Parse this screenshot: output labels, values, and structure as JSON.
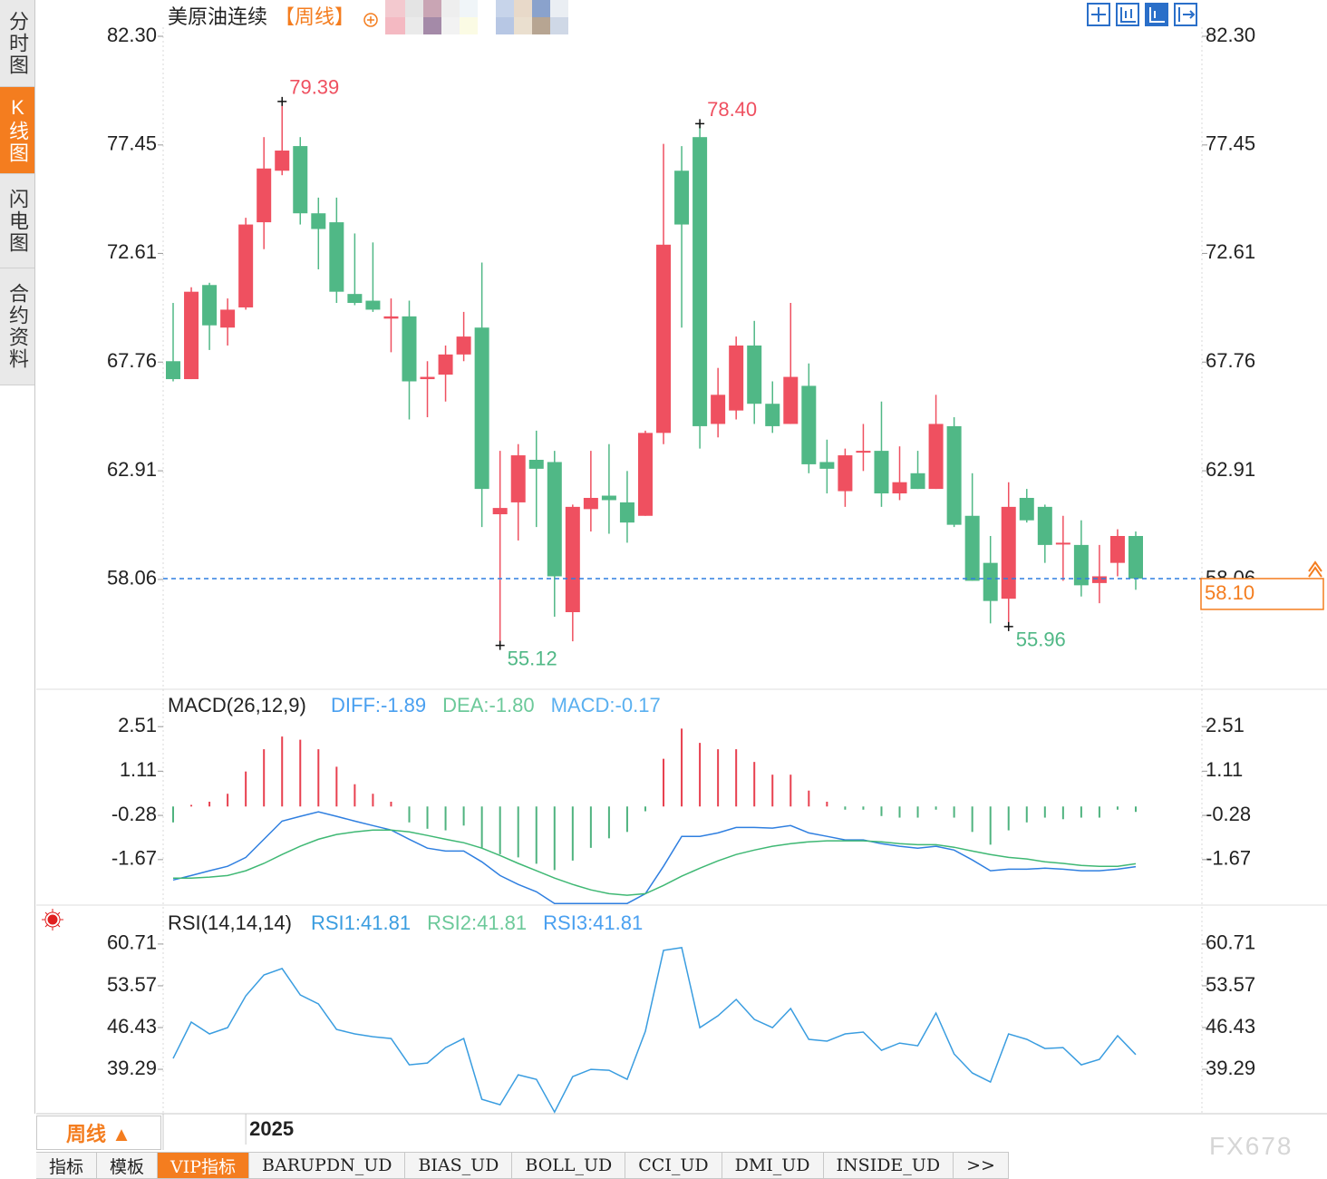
{
  "chart_data": [
    {
      "type": "candlestick",
      "title": "美原油连续",
      "period": "【周线】",
      "categories": [
        null,
        null,
        null,
        null,
        "2025",
        null,
        null,
        null,
        null,
        null,
        null,
        null,
        null,
        null,
        null,
        null,
        null,
        null,
        null,
        null,
        null,
        null,
        null,
        null,
        null,
        null,
        null,
        null,
        null,
        null,
        null,
        null,
        null,
        null,
        null,
        null,
        null,
        null,
        null,
        null,
        null,
        null,
        null,
        null,
        null,
        null,
        null,
        null,
        null,
        null,
        null,
        null,
        null,
        null
      ],
      "open": [
        67.8,
        67.0,
        71.2,
        69.3,
        70.2,
        74.0,
        76.3,
        77.4,
        74.4,
        74.0,
        70.8,
        70.5,
        69.7,
        69.8,
        67.0,
        67.2,
        68.1,
        69.3,
        60.97,
        61.5,
        63.4,
        63.3,
        56.6,
        61.2,
        61.8,
        61.5,
        60.9,
        64.6,
        76.3,
        77.8,
        65.0,
        65.6,
        68.5,
        65.9,
        65.0,
        66.7,
        63.3,
        62.0,
        63.75,
        63.8,
        61.9,
        62.8,
        62.1,
        64.9,
        60.9,
        58.8,
        57.2,
        61.7,
        61.3,
        59.65,
        59.6,
        57.9,
        58.8,
        60.0
      ],
      "high": [
        70.4,
        71.1,
        71.3,
        70.6,
        74.2,
        77.8,
        79.39,
        77.8,
        75.1,
        75.1,
        73.5,
        73.1,
        70.6,
        70.5,
        67.8,
        68.5,
        70.0,
        72.2,
        63.8,
        64.1,
        64.7,
        63.8,
        61.4,
        63.8,
        64.1,
        62.9,
        64.7,
        77.5,
        77.4,
        78.4,
        67.5,
        68.9,
        69.6,
        66.9,
        70.4,
        67.7,
        64.3,
        63.9,
        65.0,
        66.0,
        64.0,
        63.8,
        66.3,
        65.3,
        62.8,
        60.0,
        62.4,
        62.1,
        61.4,
        60.9,
        60.7,
        59.6,
        60.3,
        60.2
      ],
      "low": [
        66.9,
        67.0,
        68.3,
        68.5,
        70.1,
        72.8,
        76.1,
        73.9,
        71.9,
        70.4,
        70.3,
        70.0,
        68.2,
        65.2,
        65.3,
        66.0,
        67.8,
        60.4,
        55.12,
        59.8,
        60.4,
        56.4,
        55.3,
        60.2,
        60.1,
        59.7,
        60.9,
        64.1,
        69.3,
        63.9,
        64.4,
        65.2,
        65.0,
        64.6,
        65.0,
        62.8,
        61.9,
        61.3,
        62.9,
        61.3,
        61.6,
        62.1,
        62.1,
        60.4,
        58.0,
        56.1,
        55.96,
        60.6,
        58.8,
        58.0,
        57.3,
        57.0,
        58.2,
        57.6
      ],
      "close": [
        67.0,
        70.9,
        69.4,
        70.1,
        73.9,
        76.4,
        77.2,
        74.4,
        73.7,
        70.9,
        70.4,
        70.1,
        69.8,
        66.9,
        67.1,
        68.1,
        68.9,
        62.1,
        61.25,
        63.6,
        63.0,
        58.2,
        61.3,
        61.7,
        61.6,
        60.6,
        64.6,
        73.0,
        73.9,
        64.9,
        66.3,
        68.5,
        65.9,
        64.9,
        67.1,
        63.2,
        63.0,
        63.6,
        63.8,
        61.9,
        62.4,
        62.1,
        65.0,
        60.5,
        58.0,
        57.1,
        61.3,
        60.7,
        59.6,
        59.7,
        57.8,
        58.2,
        60.0,
        58.1
      ],
      "up_color": "#ef5060",
      "down_color": "#50b886",
      "price_labels": [
        {
          "field": "high",
          "index": 6,
          "label": "79.39"
        },
        {
          "field": "high",
          "index": 29,
          "label": "78.40"
        },
        {
          "field": "low",
          "index": 18,
          "label": "55.12"
        },
        {
          "field": "low",
          "index": 46,
          "label": "55.96"
        }
      ],
      "last_label": "58.10",
      "ylim": [
        53.16,
        82.3
      ],
      "yticks": [
        {
          "value": 82.3,
          "label": "82.30"
        },
        77.45,
        72.61,
        67.76,
        62.91,
        58.06
      ]
    },
    {
      "type": "macd",
      "title": "MACD(26,12,9)",
      "series": [
        {
          "name": "DIFF:-1.89",
          "color": "#2f7fe0",
          "values": [
            -2.31,
            -2.17,
            -2.02,
            -1.88,
            -1.6,
            -1.03,
            -0.46,
            -0.31,
            -0.17,
            -0.31,
            -0.46,
            -0.6,
            -0.74,
            -1.03,
            -1.31,
            -1.4,
            -1.4,
            -1.74,
            -2.17,
            -2.45,
            -2.68,
            -3.05,
            -3.05,
            -3.05,
            -3.05,
            -3.05,
            -2.74,
            -1.88,
            -0.94,
            -0.94,
            -0.83,
            -0.66,
            -0.66,
            -0.68,
            -0.6,
            -0.83,
            -0.94,
            -1.05,
            -1.05,
            -1.17,
            -1.25,
            -1.31,
            -1.25,
            -1.37,
            -1.68,
            -2.02,
            -1.97,
            -1.97,
            -1.94,
            -1.97,
            -2.02,
            -2.02,
            -1.97,
            -1.89
          ]
        },
        {
          "name": "DEA:-1.80",
          "color": "#3fb874",
          "values": [
            -2.25,
            -2.25,
            -2.22,
            -2.17,
            -2.02,
            -1.79,
            -1.51,
            -1.25,
            -1.03,
            -0.88,
            -0.8,
            -0.74,
            -0.74,
            -0.8,
            -0.91,
            -1.03,
            -1.14,
            -1.31,
            -1.54,
            -1.79,
            -2.02,
            -2.25,
            -2.45,
            -2.62,
            -2.74,
            -2.79,
            -2.74,
            -2.48,
            -2.19,
            -1.94,
            -1.71,
            -1.51,
            -1.37,
            -1.25,
            -1.17,
            -1.11,
            -1.08,
            -1.08,
            -1.08,
            -1.11,
            -1.17,
            -1.2,
            -1.2,
            -1.28,
            -1.4,
            -1.51,
            -1.6,
            -1.65,
            -1.74,
            -1.79,
            -1.85,
            -1.88,
            -1.88,
            -1.8
          ]
        }
      ],
      "histogram": {
        "name": "MACD:-0.17",
        "color": "#5ab0f0",
        "up_color": "#e8404f",
        "down_color": "#4fb37f",
        "values": [
          -0.5,
          0.05,
          0.15,
          0.4,
          1.1,
          1.8,
          2.2,
          2.1,
          1.8,
          1.25,
          0.7,
          0.4,
          0.15,
          -0.5,
          -0.7,
          -0.75,
          -0.6,
          -1.3,
          -1.5,
          -1.6,
          -1.8,
          -2.0,
          -1.7,
          -1.3,
          -1.0,
          -0.8,
          -0.15,
          1.5,
          2.45,
          2.0,
          1.8,
          1.8,
          1.4,
          1.0,
          1.0,
          0.5,
          0.15,
          -0.1,
          -0.1,
          -0.3,
          -0.35,
          -0.35,
          -0.1,
          -0.35,
          -0.8,
          -1.2,
          -0.75,
          -0.5,
          -0.35,
          -0.4,
          -0.35,
          -0.35,
          -0.1,
          -0.17
        ]
      },
      "legend_colors": [
        "#4aa0f0",
        "#6cc99a"
      ],
      "ylim": [
        -3.1,
        3.4
      ],
      "yticks": [
        2.51,
        1.11,
        -0.28,
        -1.67
      ]
    },
    {
      "type": "line",
      "title": "RSI(14,14,14)",
      "series": [
        {
          "name": "RSI1:41.81",
          "color": "#3a9de0",
          "values": [
            41.14,
            47.36,
            45.34,
            46.42,
            51.86,
            55.43,
            56.52,
            52.01,
            50.46,
            46.11,
            45.34,
            44.87,
            44.56,
            40.06,
            40.37,
            43.01,
            44.56,
            34.16,
            33.23,
            38.35,
            37.57,
            31.98,
            38.04,
            39.28,
            39.13,
            37.57,
            45.8,
            59.62,
            60.09,
            46.42,
            48.44,
            51.24,
            47.82,
            46.42,
            49.69,
            44.41,
            44.1,
            45.34,
            45.65,
            42.54,
            43.78,
            43.32,
            48.91,
            41.92,
            38.66,
            37.11,
            45.34,
            44.41,
            42.85,
            43.01,
            40.06,
            40.99,
            45.03,
            41.81
          ]
        },
        {
          "name": "RSI2:41.81",
          "color": "#6cc99a"
        },
        {
          "name": "RSI3:41.81",
          "color": "#4aa0f0"
        }
      ],
      "ylim": [
        31.7,
        62.4
      ],
      "yticks": [
        60.71,
        53.57,
        46.43,
        39.29
      ]
    }
  ],
  "ui": {
    "sidebar": [
      "分时图",
      "K线图",
      "闪电图",
      "合约资料"
    ],
    "active_sidebar": 1,
    "period_button": "周线 ▲",
    "tabs": [
      "指标",
      "模板",
      "VIP指标",
      "BARUPDN_UD",
      "BIAS_UD",
      "BOLL_UD",
      "CCI_UD",
      "DMI_UD",
      "INSIDE_UD",
      ">>"
    ],
    "active_tab": 2,
    "watermark": "FX678"
  }
}
